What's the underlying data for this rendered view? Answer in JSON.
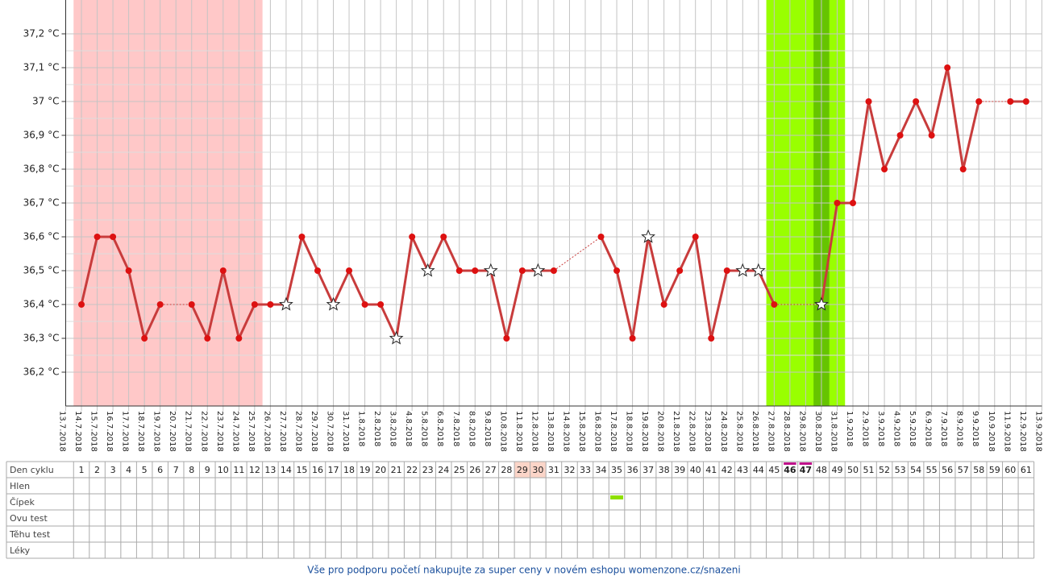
{
  "chart_data": {
    "type": "line",
    "categories": [
      "13.7.2018",
      "14.7.2018",
      "15.7.2018",
      "16.7.2018",
      "17.7.2018",
      "18.7.2018",
      "19.7.2018",
      "20.7.2018",
      "21.7.2018",
      "22.7.2018",
      "23.7.2018",
      "24.7.2018",
      "25.7.2018",
      "26.7.2018",
      "27.7.2018",
      "28.7.2018",
      "29.7.2018",
      "30.7.2018",
      "31.7.2018",
      "1.8.2018",
      "2.8.2018",
      "3.8.2018",
      "4.8.2018",
      "5.8.2018",
      "6.8.2018",
      "7.8.2018",
      "8.8.2018",
      "9.8.2018",
      "10.8.2018",
      "11.8.2018",
      "12.8.2018",
      "13.8.2018",
      "14.8.2018",
      "15.8.2018",
      "16.8.2018",
      "17.8.2018",
      "18.8.2018",
      "19.8.2018",
      "20.8.2018",
      "21.8.2018",
      "22.8.2018",
      "23.8.2018",
      "24.8.2018",
      "25.8.2018",
      "26.8.2018",
      "27.8.2018",
      "28.8.2018",
      "29.8.2018",
      "30.8.2018",
      "31.8.2018",
      "1.9.2018",
      "2.9.2018",
      "3.9.2018",
      "4.9.2018",
      "5.9.2018",
      "6.9.2018",
      "7.9.2018",
      "8.9.2018",
      "9.9.2018",
      "10.9.2018",
      "11.9.2018",
      "12.9.2018",
      "13.9.2018"
    ],
    "values": [
      null,
      36.4,
      36.6,
      36.6,
      36.5,
      36.3,
      36.4,
      null,
      36.4,
      36.3,
      36.5,
      36.3,
      36.4,
      36.4,
      36.4,
      36.6,
      36.5,
      36.4,
      36.5,
      36.4,
      36.4,
      36.3,
      36.6,
      36.5,
      36.6,
      36.5,
      36.5,
      36.5,
      36.3,
      36.5,
      36.5,
      36.5,
      null,
      null,
      36.6,
      36.5,
      36.3,
      36.6,
      36.4,
      36.5,
      36.6,
      36.3,
      36.5,
      36.5,
      36.5,
      36.4,
      null,
      null,
      36.4,
      36.7,
      36.7,
      37.0,
      36.8,
      36.9,
      37.0,
      36.9,
      37.1,
      36.8,
      37.0,
      null,
      37.0,
      37.0,
      null
    ],
    "star_points": [
      14,
      17,
      21,
      23,
      27,
      30,
      37,
      43,
      44,
      48
    ],
    "line_color": "#c83c3c",
    "point_color": "#dd1111",
    "period": [
      1,
      12
    ],
    "period_color": "#ffc8c8",
    "fertile": [
      45,
      49
    ],
    "fertile_color": "#99ff00",
    "ovulation": 48,
    "ovulation_color": "#66c400",
    "ylim": [
      36.1,
      37.3
    ],
    "yticks": [
      {
        "value": 36.2,
        "label": "36,2 °C"
      },
      {
        "value": 36.3,
        "label": "36,3 °C"
      },
      {
        "value": 36.4,
        "label": "36,4 °C"
      },
      {
        "value": 36.5,
        "label": "36,5 °C"
      },
      {
        "value": 36.6,
        "label": "36,6 °C"
      },
      {
        "value": 36.7,
        "label": "36,7 °C"
      },
      {
        "value": 36.8,
        "label": "36,8 °C"
      },
      {
        "value": 36.9,
        "label": "36,9 °C"
      },
      {
        "value": 37,
        "label": "37 °C"
      },
      {
        "value": 37.1,
        "label": "37,1 °C"
      },
      {
        "value": 37.2,
        "label": "37,2 °C"
      }
    ],
    "grid": true
  },
  "table": {
    "row_labels": [
      "Den cyklu",
      "Hlen",
      "Čípek",
      "Ovu test",
      "Těhu test",
      "Léky"
    ],
    "cycle_days": [
      1,
      2,
      3,
      4,
      5,
      6,
      7,
      8,
      9,
      10,
      11,
      12,
      13,
      14,
      15,
      16,
      17,
      18,
      19,
      20,
      21,
      22,
      23,
      24,
      25,
      26,
      27,
      28,
      29,
      30,
      31,
      32,
      33,
      34,
      35,
      36,
      37,
      38,
      39,
      40,
      41,
      42,
      43,
      44,
      45,
      46,
      47,
      48,
      49,
      50,
      51,
      52,
      53,
      54,
      55,
      56,
      57,
      58,
      59,
      60,
      61
    ],
    "highlight_days": [
      29,
      30
    ],
    "marked_days": [
      46,
      47
    ],
    "cipek_marks": [
      35
    ]
  },
  "footer": "Vše pro podporu početí nakupujte za super ceny v novém eshopu womenzone.cz/snazeni"
}
